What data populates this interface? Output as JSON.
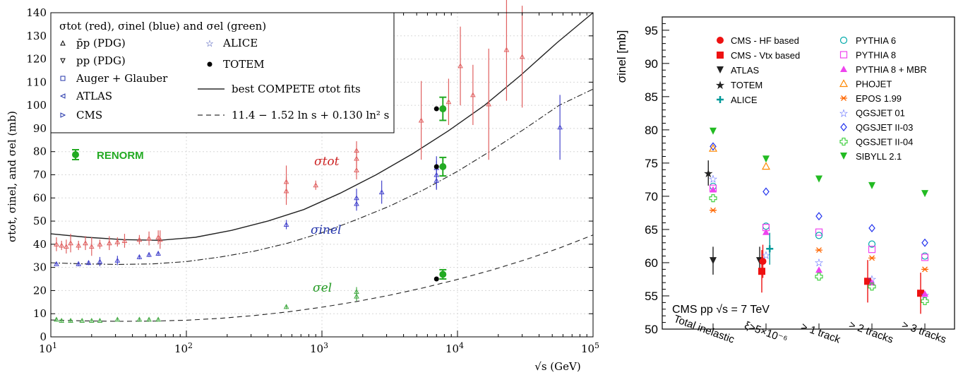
{
  "chart_data": [
    {
      "type": "scatter",
      "xscale": "log",
      "xlim": [
        10,
        100000
      ],
      "ylim": [
        0,
        140
      ],
      "xticks": [
        "10^1",
        "10^2",
        "10^3",
        "10^4",
        "10^5"
      ],
      "yticks": [
        0,
        10,
        20,
        30,
        40,
        50,
        60,
        70,
        80,
        90,
        100,
        110,
        120,
        130,
        140
      ],
      "xlabel": "√s (GeV)",
      "ylabel": "σtot, σinel, and σel (mb)",
      "legend_title": "σtot (red), σinel (blue) and σel (green)",
      "legend": [
        {
          "symbol": "triangle-up",
          "label": "p̄p (PDG)"
        },
        {
          "symbol": "triangle-down",
          "label": "pp (PDG)"
        },
        {
          "symbol": "square",
          "label": "Auger + Glauber"
        },
        {
          "symbol": "triangle-left",
          "label": "ATLAS"
        },
        {
          "symbol": "triangle-right",
          "label": "CMS"
        },
        {
          "symbol": "star",
          "label": "ALICE"
        },
        {
          "symbol": "dot",
          "label": "TOTEM"
        },
        {
          "symbol": "solid-line",
          "label": "best COMPETE σtot fits"
        },
        {
          "symbol": "dashed-line",
          "label": "11.4 − 1.52 ln s + 0.130 ln² s"
        }
      ],
      "renorm_label": "RENORM",
      "annotations": [
        {
          "label": "σtot",
          "color": "#cc2222"
        },
        {
          "label": "σinel",
          "color": "#2233aa"
        },
        {
          "label": "σel",
          "color": "#229922"
        }
      ],
      "series": [
        {
          "name": "σtot",
          "color": "#e06060",
          "points": [
            {
              "x": 11,
              "y": 40,
              "err": 3
            },
            {
              "x": 12,
              "y": 39.5,
              "err": 2
            },
            {
              "x": 13,
              "y": 39,
              "err": 3
            },
            {
              "x": 14,
              "y": 40.5,
              "err": 4
            },
            {
              "x": 16,
              "y": 39.5,
              "err": 2
            },
            {
              "x": 18,
              "y": 40.5,
              "err": 3
            },
            {
              "x": 20,
              "y": 39,
              "err": 4
            },
            {
              "x": 23,
              "y": 40,
              "err": 2
            },
            {
              "x": 27,
              "y": 40.5,
              "err": 3
            },
            {
              "x": 31,
              "y": 41,
              "err": 2
            },
            {
              "x": 35,
              "y": 41.5,
              "err": 3
            },
            {
              "x": 45,
              "y": 42,
              "err": 2
            },
            {
              "x": 53,
              "y": 42.5,
              "err": 3
            },
            {
              "x": 62,
              "y": 43,
              "err": 3
            },
            {
              "x": 64,
              "y": 42,
              "err": 4
            },
            {
              "x": 546,
              "y": 63,
              "err": 6
            },
            {
              "x": 546,
              "y": 67,
              "err": 7
            },
            {
              "x": 900,
              "y": 65.5,
              "err": 2
            },
            {
              "x": 1800,
              "y": 72,
              "err": 4
            },
            {
              "x": 1800,
              "y": 77,
              "err": 4
            },
            {
              "x": 1800,
              "y": 80.5,
              "err": 4
            },
            {
              "x": 5400,
              "y": 93.5,
              "err": 17
            },
            {
              "x": 8600,
              "y": 101.5,
              "err": 10
            },
            {
              "x": 10500,
              "y": 117,
              "err": 17
            },
            {
              "x": 13000,
              "y": 104.5,
              "err": 13
            },
            {
              "x": 17000,
              "y": 100.5,
              "err": 24
            },
            {
              "x": 23000,
              "y": 124,
              "err": 22
            },
            {
              "x": 30000,
              "y": 121,
              "err": 22
            }
          ]
        },
        {
          "name": "σinel",
          "color": "#4444cc",
          "points": [
            {
              "x": 11,
              "y": 31.5,
              "err": 0.5
            },
            {
              "x": 16,
              "y": 31.5,
              "err": 1
            },
            {
              "x": 19,
              "y": 32,
              "err": 1
            },
            {
              "x": 23,
              "y": 32.5,
              "err": 2
            },
            {
              "x": 31,
              "y": 33,
              "err": 2
            },
            {
              "x": 45,
              "y": 34.5,
              "err": 1
            },
            {
              "x": 53,
              "y": 35.5,
              "err": 1
            },
            {
              "x": 62,
              "y": 36,
              "err": 1
            },
            {
              "x": 546,
              "y": 48.5,
              "err": 2
            },
            {
              "x": 1800,
              "y": 57.5,
              "err": 3
            },
            {
              "x": 1800,
              "y": 60,
              "err": 4
            },
            {
              "x": 2760,
              "y": 62.5,
              "err": 5
            },
            {
              "x": 7000,
              "y": 67.5,
              "err": 4
            },
            {
              "x": 7000,
              "y": 70,
              "err": 6
            },
            {
              "x": 7000,
              "y": 73,
              "err": 5
            },
            {
              "x": 57000,
              "y": 90.5,
              "err": 14
            }
          ]
        },
        {
          "name": "σel",
          "color": "#44aa44",
          "points": [
            {
              "x": 11,
              "y": 7.5,
              "err": 0.8
            },
            {
              "x": 12,
              "y": 7,
              "err": 0.6
            },
            {
              "x": 14,
              "y": 7,
              "err": 0.6
            },
            {
              "x": 17,
              "y": 7,
              "err": 0.5
            },
            {
              "x": 20,
              "y": 7,
              "err": 0.5
            },
            {
              "x": 23,
              "y": 7,
              "err": 0.5
            },
            {
              "x": 31,
              "y": 7.5,
              "err": 0.5
            },
            {
              "x": 45,
              "y": 7.5,
              "err": 0.5
            },
            {
              "x": 53,
              "y": 7.5,
              "err": 0.5
            },
            {
              "x": 62,
              "y": 7.5,
              "err": 0.5
            },
            {
              "x": 546,
              "y": 13,
              "err": 1
            },
            {
              "x": 1800,
              "y": 17.5,
              "err": 2
            },
            {
              "x": 1800,
              "y": 19.5,
              "err": 2
            }
          ]
        },
        {
          "name": "TOTEM",
          "color": "#000000",
          "points": [
            {
              "x": 7000,
              "y": 98.5
            },
            {
              "x": 7000,
              "y": 73.5
            },
            {
              "x": 7000,
              "y": 25
            }
          ]
        },
        {
          "name": "RENORM",
          "color": "#22aa22",
          "points": [
            {
              "x": 7800,
              "y": 98.5,
              "err": 5
            },
            {
              "x": 7800,
              "y": 73.5,
              "err": 4
            },
            {
              "x": 7800,
              "y": 27,
              "err": 2
            }
          ]
        }
      ],
      "curves": [
        {
          "style": "solid",
          "y": [
            44.5,
            43,
            42,
            41.7,
            43,
            46,
            50,
            55,
            62,
            70,
            79,
            89,
            100,
            113,
            127,
            142
          ]
        },
        {
          "style": "dashdot",
          "y": [
            32,
            31.5,
            31.3,
            31.5,
            32.5,
            34.5,
            37,
            40.5,
            45,
            50.5,
            56.5,
            63.5,
            71.5,
            80.5,
            90,
            100,
            107
          ]
        },
        {
          "style": "dashed",
          "y": [
            7.3,
            6.9,
            6.7,
            6.8,
            7.2,
            8,
            9.2,
            10.8,
            12.8,
            15.2,
            18,
            21.2,
            24.8,
            28.8,
            33.3,
            38.3,
            44
          ]
        }
      ]
    },
    {
      "type": "scatter",
      "ylim": [
        50,
        97
      ],
      "yticks": [
        50,
        55,
        60,
        65,
        70,
        75,
        80,
        85,
        90,
        95
      ],
      "ylabel": "σinel [mb]",
      "categories": [
        "Total inelastic",
        "ξ>5×10⁻⁶",
        "> 1 track",
        "> 2 tracks",
        "> 3 tracks"
      ],
      "annotation": "CMS pp √s = 7 TeV",
      "legend_col1": [
        {
          "label": "CMS - HF based",
          "marker": "dot",
          "color": "#ee1111"
        },
        {
          "label": "CMS - Vtx based",
          "marker": "square",
          "color": "#ee1111"
        },
        {
          "label": "ATLAS",
          "marker": "triangle-down",
          "color": "#222222"
        },
        {
          "label": "TOTEM",
          "marker": "star-filled",
          "color": "#222222"
        },
        {
          "label": "ALICE",
          "marker": "plus",
          "color": "#009999"
        }
      ],
      "legend_col2": [
        {
          "label": "PYTHIA 6",
          "marker": "circle-open",
          "color": "#00aaaa"
        },
        {
          "label": "PYTHIA 8",
          "marker": "square-open",
          "color": "#ee44ee"
        },
        {
          "label": "PYTHIA 8 + MBR",
          "marker": "triangle-filled",
          "color": "#ee44ee"
        },
        {
          "label": "PHOJET",
          "marker": "triangle-open",
          "color": "#ff8800"
        },
        {
          "label": "EPOS 1.99",
          "marker": "asterisk",
          "color": "#ff6600"
        },
        {
          "label": "QGSJET 01",
          "marker": "star-open",
          "color": "#3344ff"
        },
        {
          "label": "QGSJET II-03",
          "marker": "diamond-open",
          "color": "#2233ee"
        },
        {
          "label": "QGSJET II-04",
          "marker": "cross-open",
          "color": "#33cc33"
        },
        {
          "label": "SIBYLL 2.1",
          "marker": "triangle-down-filled",
          "color": "#22bb22"
        }
      ],
      "data": [
        {
          "category": 0,
          "label": "ATLAS",
          "y": 60.3,
          "err": 2.1,
          "dx": 0.0
        },
        {
          "category": 0,
          "label": "TOTEM",
          "y": 73.5,
          "err": 1.9,
          "dx": -0.09
        },
        {
          "category": 0,
          "label": "SIBYLL 2.1",
          "y": 79.8,
          "dx": 0.0
        },
        {
          "category": 0,
          "label": "QGSJET II-03",
          "y": 77.5,
          "dx": 0.0
        },
        {
          "category": 0,
          "label": "PHOJET",
          "y": 77.2,
          "dx": 0.0
        },
        {
          "category": 0,
          "label": "QGSJET 01",
          "y": 72.7,
          "dx": 0.0
        },
        {
          "category": 0,
          "label": "PYTHIA 6",
          "y": 71.5,
          "dx": 0.0
        },
        {
          "category": 0,
          "label": "PYTHIA 8",
          "y": 71.2,
          "dx": 0.0
        },
        {
          "category": 0,
          "label": "PYTHIA 8 + MBR",
          "y": 71.0,
          "dx": 0.0
        },
        {
          "category": 0,
          "label": "QGSJET II-04",
          "y": 69.7,
          "dx": 0.0
        },
        {
          "category": 0,
          "label": "EPOS 1.99",
          "y": 67.9,
          "dx": 0.0
        },
        {
          "category": 1,
          "label": "ATLAS",
          "y": 60.3,
          "err": 2.1,
          "dx": -0.12
        },
        {
          "category": 1,
          "label": "CMS - HF based",
          "y": 60.2,
          "err": 2.5,
          "dx": -0.06
        },
        {
          "category": 1,
          "label": "ALICE",
          "y": 62.1,
          "err": 2.4,
          "dx": 0.07
        },
        {
          "category": 1,
          "label": "SIBYLL 2.1",
          "y": 75.6,
          "dx": 0.0
        },
        {
          "category": 1,
          "label": "PHOJET",
          "y": 74.5,
          "dx": 0.0
        },
        {
          "category": 1,
          "label": "QGSJET II-03",
          "y": 70.7,
          "dx": 0.0
        },
        {
          "category": 1,
          "label": "PYTHIA 6",
          "y": 65.5,
          "dx": 0.0
        },
        {
          "category": 1,
          "label": "PYTHIA 8",
          "y": 65.3,
          "dx": 0.0
        },
        {
          "category": 1,
          "label": "PYTHIA 8 + MBR",
          "y": 64.6,
          "dx": 0.0
        },
        {
          "category": 1,
          "label": "QGSJET 01",
          "y": 61.2,
          "dx": 0.0
        },
        {
          "category": 1,
          "label": "CMS - Vtx based",
          "y": 58.7,
          "err": 3.2,
          "dx": -0.08
        },
        {
          "category": 2,
          "label": "SIBYLL 2.1",
          "y": 72.6,
          "dx": 0.0
        },
        {
          "category": 2,
          "label": "QGSJET II-03",
          "y": 67.0,
          "dx": 0.0
        },
        {
          "category": 2,
          "label": "PYTHIA 8",
          "y": 64.6,
          "dx": 0.0
        },
        {
          "category": 2,
          "label": "PYTHIA 6",
          "y": 64.1,
          "dx": 0.0
        },
        {
          "category": 2,
          "label": "EPOS 1.99",
          "y": 61.9,
          "dx": 0.0
        },
        {
          "category": 2,
          "label": "QGSJET 01",
          "y": 60.1,
          "dx": 0.0
        },
        {
          "category": 2,
          "label": "PYTHIA 8 + MBR",
          "y": 58.9,
          "dx": 0.0
        },
        {
          "category": 2,
          "label": "QGSJET II-04",
          "y": 57.9,
          "dx": 0.0
        },
        {
          "category": 3,
          "label": "CMS - Vtx based",
          "y": 57.2,
          "err": 3.2,
          "dx": -0.08
        },
        {
          "category": 3,
          "label": "SIBYLL 2.1",
          "y": 71.6,
          "dx": 0.0
        },
        {
          "category": 3,
          "label": "QGSJET II-03",
          "y": 65.2,
          "dx": 0.0
        },
        {
          "category": 3,
          "label": "PYTHIA 6",
          "y": 62.8,
          "dx": 0.0
        },
        {
          "category": 3,
          "label": "PYTHIA 8",
          "y": 62.0,
          "dx": 0.0
        },
        {
          "category": 3,
          "label": "EPOS 1.99",
          "y": 60.7,
          "dx": 0.0
        },
        {
          "category": 3,
          "label": "QGSJET 01",
          "y": 57.6,
          "dx": 0.0
        },
        {
          "category": 3,
          "label": "PYTHIA 8 + MBR",
          "y": 57.0,
          "dx": 0.0
        },
        {
          "category": 3,
          "label": "QGSJET II-04",
          "y": 56.4,
          "dx": 0.0
        },
        {
          "category": 4,
          "label": "CMS - Vtx based",
          "y": 55.4,
          "err": 3.1,
          "dx": -0.08
        },
        {
          "category": 4,
          "label": "SIBYLL 2.1",
          "y": 70.4,
          "dx": 0.0
        },
        {
          "category": 4,
          "label": "QGSJET II-03",
          "y": 63.0,
          "dx": 0.0
        },
        {
          "category": 4,
          "label": "PYTHIA 6",
          "y": 61.0,
          "dx": 0.0
        },
        {
          "category": 4,
          "label": "PYTHIA 8",
          "y": 60.8,
          "dx": 0.0
        },
        {
          "category": 4,
          "label": "EPOS 1.99",
          "y": 59.0,
          "dx": 0.0
        },
        {
          "category": 4,
          "label": "QGSJET 01",
          "y": 55.2,
          "dx": 0.0
        },
        {
          "category": 4,
          "label": "PYTHIA 8 + MBR",
          "y": 55.3,
          "dx": 0.0
        },
        {
          "category": 4,
          "label": "QGSJET II-04",
          "y": 54.2,
          "dx": 0.0
        }
      ]
    }
  ]
}
